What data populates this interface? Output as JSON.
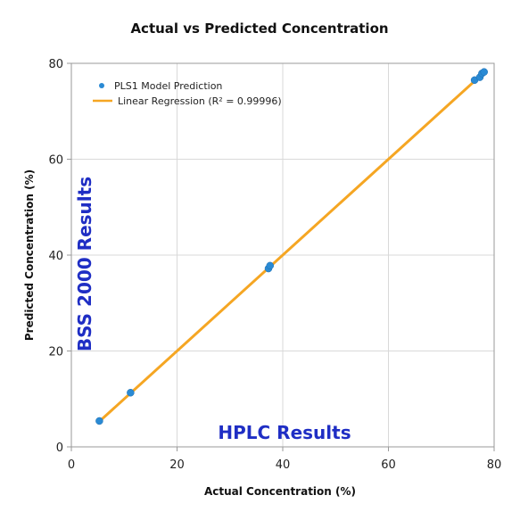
{
  "chart_data": {
    "type": "scatter",
    "title": "Actual vs Predicted Concentration",
    "xlabel": "Actual Concentration (%)",
    "ylabel": "Predicted Concentration (%)",
    "xlim": [
      0,
      80
    ],
    "ylim": [
      0,
      80
    ],
    "xticks": [
      0,
      20,
      40,
      60,
      80
    ],
    "yticks": [
      0,
      20,
      40,
      60,
      80
    ],
    "grid": true,
    "legend_position": "top-left",
    "series": [
      {
        "name": "PLS1 Model Prediction",
        "kind": "scatter",
        "color": "#2a8ad4",
        "points": [
          {
            "x": 5.3,
            "y": 5.4
          },
          {
            "x": 11.2,
            "y": 11.3
          },
          {
            "x": 37.3,
            "y": 37.2
          },
          {
            "x": 37.6,
            "y": 37.8
          },
          {
            "x": 76.3,
            "y": 76.5
          },
          {
            "x": 77.3,
            "y": 77.1
          },
          {
            "x": 77.7,
            "y": 77.9
          },
          {
            "x": 78.1,
            "y": 78.2
          }
        ]
      },
      {
        "name": "Linear Regression (R² = 0.99996)",
        "kind": "line",
        "color": "#f5a623",
        "points": [
          {
            "x": 5.3,
            "y": 5.3
          },
          {
            "x": 78.1,
            "y": 78.1
          }
        ]
      }
    ],
    "annotations": [
      {
        "text": "BSS 2000 Results",
        "color": "#1f2ec4"
      },
      {
        "text": "HPLC Results",
        "color": "#1f2ec4"
      }
    ]
  }
}
